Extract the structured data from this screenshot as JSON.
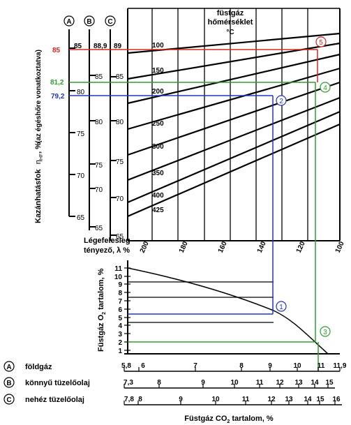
{
  "scale_ids": {
    "a": "A",
    "b": "B",
    "c": "C"
  },
  "efficiency": {
    "axis_label": "Kazánhatásfok",
    "axis_symbol": "η",
    "axis_sub": "HF",
    "axis_unit": ", %",
    "axis_note": "(az égéshőre vonatkoztatva)",
    "scale_a_top": "85",
    "scale_b_top": "88,9",
    "scale_c_top": "89",
    "scale_a": [
      "80",
      "75",
      "70",
      "65"
    ],
    "scale_b": [
      "85",
      "80",
      "75",
      "70",
      "65"
    ],
    "scale_c": [
      "85",
      "80",
      "75",
      "70",
      "65"
    ]
  },
  "highlight_values": {
    "red": "85",
    "green": "81,2",
    "blue": "79,2"
  },
  "fluegas_temp": {
    "title_line1": "füstgáz",
    "title_line2": "hőmérséklet",
    "unit": "°C",
    "curves": [
      "100",
      "150",
      "200",
      "250",
      "300",
      "350",
      "400",
      "425"
    ]
  },
  "excess_air": {
    "label_line1": "Légefelesleg",
    "label_line2": "tényező, λ %",
    "ticks": [
      "200",
      "180",
      "160",
      "140",
      "120",
      "100"
    ]
  },
  "o2_axis": {
    "label_prefix": "Füstgáz O",
    "label_sub": "2",
    "label_suffix": " tartalom, %",
    "ticks": [
      "11",
      "10",
      "9",
      "8",
      "7",
      "6",
      "5",
      "4",
      "3",
      "2",
      "1"
    ]
  },
  "markers": [
    "1",
    "2",
    "3",
    "4",
    "5"
  ],
  "fuels": [
    {
      "id": "A",
      "name": "földgáz",
      "ticks": [
        "5,8",
        "6",
        "7",
        "8",
        "9",
        "10",
        "11",
        "11,9"
      ]
    },
    {
      "id": "B",
      "name": "könnyű tüzelőolaj",
      "ticks": [
        "7,3",
        "8",
        "9",
        "10",
        "11",
        "12",
        "13",
        "14",
        "15"
      ]
    },
    {
      "id": "C",
      "name": "nehéz tüzelőolaj",
      "ticks": [
        "7,8",
        "8",
        "9",
        "10",
        "11",
        "12",
        "13",
        "14",
        "15",
        "16"
      ]
    }
  ],
  "co2_axis": {
    "label_prefix": "Füstgáz CO",
    "label_sub": "2",
    "label_suffix": " tartalom, %"
  },
  "colors": {
    "red": "#d7261e",
    "green": "#2ca02c",
    "blue": "#1f35c8",
    "ink": "#000000"
  }
}
